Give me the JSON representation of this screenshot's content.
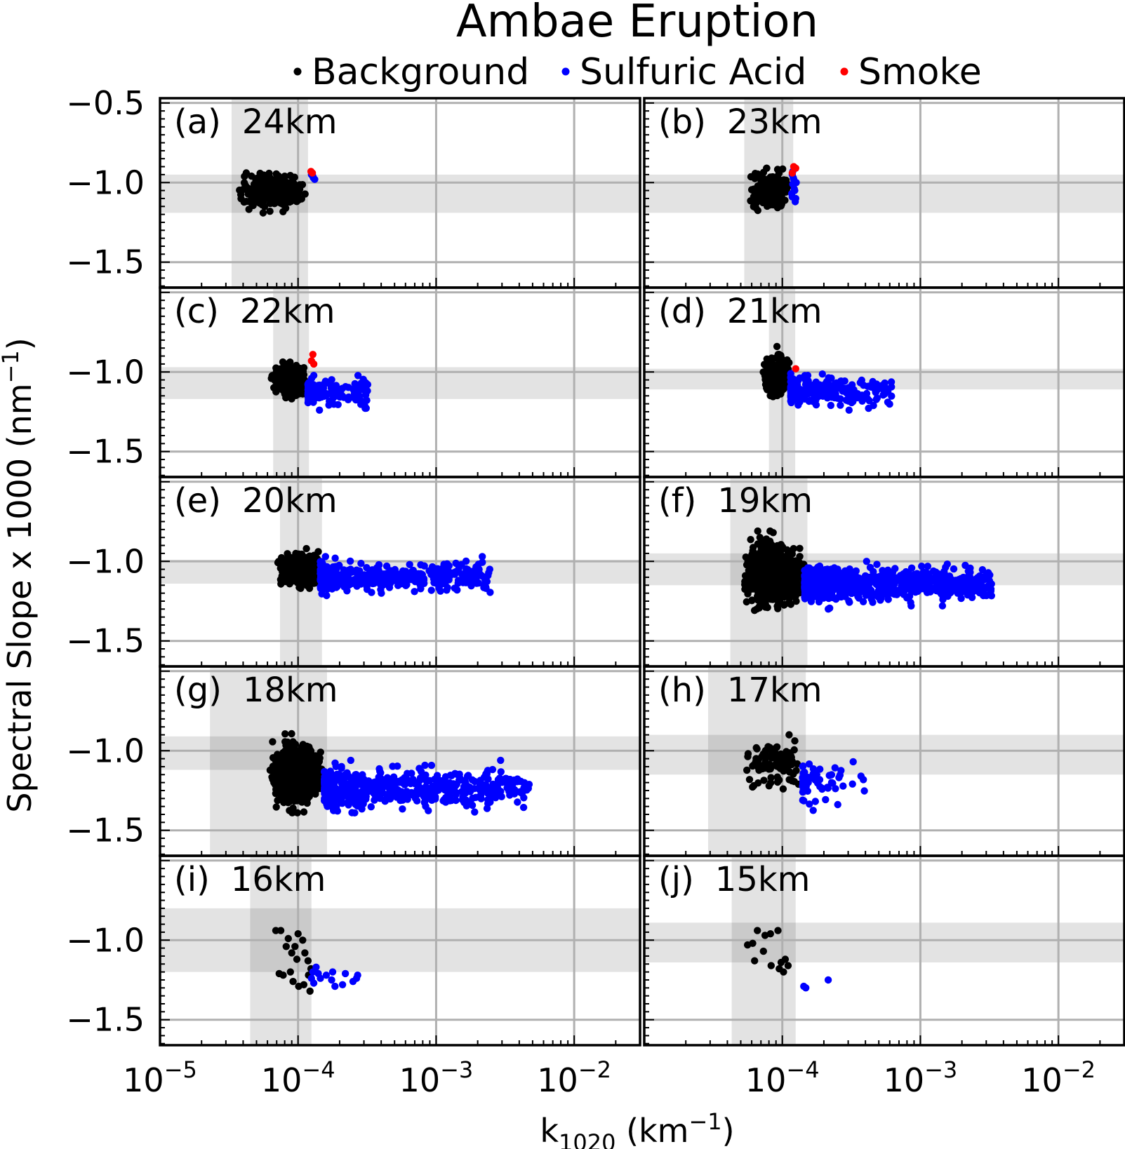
{
  "chart_data": {
    "type": "scatter",
    "title": "Ambae Eruption",
    "xlabel_main": "k",
    "xlabel_sub": "1020",
    "xlabel_unit_pre": " (km",
    "xlabel_unit_sup": "−1",
    "xlabel_unit_post": ")",
    "ylabel_main": "Spectral Slope x 1000 (nm",
    "ylabel_sup": "−1",
    "ylabel_post": ")",
    "x_scale": "log",
    "xlim": [
      1e-05,
      0.03
    ],
    "ylim": [
      -1.66,
      -0.47
    ],
    "x_ticks": [
      {
        "value": 1e-05,
        "base": "10",
        "exp": "−5"
      },
      {
        "value": 0.0001,
        "base": "10",
        "exp": "−4"
      },
      {
        "value": 0.001,
        "base": "10",
        "exp": "−3"
      },
      {
        "value": 0.01,
        "base": "10",
        "exp": "−2"
      }
    ],
    "x_tick_labels_right_panel": [
      {
        "value": 0.0001,
        "base": "10",
        "exp": "−4"
      },
      {
        "value": 0.001,
        "base": "10",
        "exp": "−3"
      },
      {
        "value": 0.01,
        "base": "10",
        "exp": "−2"
      }
    ],
    "y_ticks_top_panel": [
      {
        "value": -0.5,
        "label": "−0.5"
      },
      {
        "value": -1.0,
        "label": "−1.0"
      },
      {
        "value": -1.5,
        "label": "−1.5"
      }
    ],
    "y_ticks_other_panels": [
      {
        "value": -1.0,
        "label": "−1.0"
      },
      {
        "value": -1.5,
        "label": "−1.5"
      }
    ],
    "grid": true,
    "legend_placement": "top-center",
    "legend": [
      {
        "name": "Background",
        "color": "#000000"
      },
      {
        "name": "Sulfuric Acid",
        "color": "#0000ff"
      },
      {
        "name": "Smoke",
        "color": "#ff0000"
      }
    ],
    "panels": [
      {
        "tag": "(a)",
        "alt": "24km",
        "bg_x": [
          3.3e-05,
          0.000118
        ],
        "bg_y": [
          -1.19,
          -0.95
        ],
        "background": {
          "x": [
            3.6e-05,
            0.000115
          ],
          "xc": 6.5e-05,
          "y": [
            -1.21,
            -0.91
          ],
          "yc": -1.06,
          "n": 260
        },
        "sulfuric": [
          [
            0.000128,
            -0.96
          ],
          [
            0.000132,
            -0.98
          ],
          [
            0.000125,
            -0.95
          ],
          [
            0.000129,
            -0.97
          ]
        ],
        "smoke": [
          [
            0.000124,
            -0.93
          ],
          [
            0.000127,
            -0.94
          ]
        ]
      },
      {
        "tag": "(b)",
        "alt": "23km",
        "bg_x": [
          5.3e-05,
          0.00012
        ],
        "bg_y": [
          -1.19,
          -0.95
        ],
        "background": {
          "x": [
            5.8e-05,
            0.000112
          ],
          "xc": 8.6e-05,
          "y": [
            -1.21,
            -0.91
          ],
          "yc": -1.05,
          "n": 280
        },
        "sulfuric": [
          [
            0.000118,
            -0.95
          ],
          [
            0.000121,
            -0.98
          ],
          [
            0.000119,
            -1.01
          ],
          [
            0.000123,
            -1.05
          ],
          [
            0.000118,
            -1.09
          ],
          [
            0.000124,
            -1.12
          ],
          [
            0.00012,
            -0.97
          ],
          [
            0.000126,
            -1.0
          ],
          [
            0.000117,
            -1.07
          ],
          [
            0.000125,
            -1.1
          ],
          [
            0.000122,
            -1.04
          ],
          [
            0.000119,
            -0.93
          ]
        ],
        "smoke": [
          [
            0.000121,
            -0.9
          ],
          [
            0.000125,
            -0.91
          ],
          [
            0.000118,
            -0.94
          ]
        ]
      },
      {
        "tag": "(c)",
        "alt": "22km",
        "bg_x": [
          6.6e-05,
          0.00012
        ],
        "bg_y": [
          -1.17,
          -0.97
        ],
        "background": {
          "x": [
            6.2e-05,
            0.000115
          ],
          "xc": 9.5e-05,
          "y": [
            -1.19,
            -0.9
          ],
          "yc": -1.05,
          "n": 260
        },
        "sulfuric": {
          "x": [
            0.000118,
            0.00032
          ],
          "y": [
            -1.24,
            -0.98
          ],
          "yc": -1.13,
          "n": 130
        },
        "smoke": [
          [
            0.000128,
            -0.89
          ],
          [
            0.00013,
            -0.95
          ],
          [
            0.000125,
            -0.93
          ]
        ]
      },
      {
        "tag": "(d)",
        "alt": "21km",
        "bg_x": [
          8e-05,
          0.000124
        ],
        "bg_y": [
          -1.11,
          -0.98
        ],
        "background": {
          "x": [
            7.2e-05,
            0.000115
          ],
          "xc": 9e-05,
          "y": [
            -1.17,
            -0.84
          ],
          "yc": -1.03,
          "n": 240
        },
        "sulfuric": {
          "x": [
            0.000115,
            0.00064
          ],
          "y": [
            -1.24,
            -1.0
          ],
          "yc": -1.12,
          "n": 260
        },
        "smoke": [
          [
            0.000125,
            -0.98
          ]
        ]
      },
      {
        "tag": "(e)",
        "alt": "20km",
        "bg_x": [
          7.4e-05,
          0.000149
        ],
        "bg_y": [
          -1.14,
          -0.99
        ],
        "background": {
          "x": [
            7.1e-05,
            0.000145
          ],
          "xc": 9.8e-05,
          "y": [
            -1.17,
            -0.92
          ],
          "yc": -1.05,
          "n": 450
        },
        "sulfuric": {
          "x": [
            0.000145,
            0.0025
          ],
          "y": [
            -1.23,
            -0.97
          ],
          "yc": -1.1,
          "n": 420
        },
        "smoke": []
      },
      {
        "tag": "(f)",
        "alt": "19km",
        "bg_x": [
          4.2e-05,
          0.000152
        ],
        "bg_y": [
          -1.15,
          -0.95
        ],
        "background": {
          "x": [
            5.2e-05,
            0.000145
          ],
          "xc": 8.8e-05,
          "y": [
            -1.31,
            -0.81
          ],
          "yc": -1.08,
          "n": 850
        },
        "sulfuric": {
          "x": [
            0.000145,
            0.0033
          ],
          "y": [
            -1.3,
            -1.0
          ],
          "yc": -1.14,
          "n": 680
        },
        "smoke": []
      },
      {
        "tag": "(g)",
        "alt": "18km",
        "bg_x": [
          2.3e-05,
          0.000162
        ],
        "bg_y": [
          -1.12,
          -0.91
        ],
        "background": {
          "x": [
            6.2e-05,
            0.000155
          ],
          "xc": 9.5e-05,
          "y": [
            -1.39,
            -0.89
          ],
          "yc": -1.15,
          "n": 650
        },
        "sulfuric": {
          "x": [
            0.000155,
            0.0048
          ],
          "y": [
            -1.41,
            -1.06
          ],
          "yc": -1.24,
          "n": 560
        },
        "smoke": []
      },
      {
        "tag": "(h)",
        "alt": "17km",
        "bg_x": [
          2.9e-05,
          0.000148
        ],
        "bg_y": [
          -1.15,
          -0.9
        ],
        "background": {
          "x": [
            5.4e-05,
            0.00014
          ],
          "xc": 8.5e-05,
          "y": [
            -1.3,
            -0.88
          ],
          "yc": -1.08,
          "n": 95
        },
        "sulfuric": {
          "x": [
            0.00014,
            0.00042
          ],
          "y": [
            -1.4,
            -1.03
          ],
          "yc": -1.22,
          "n": 60
        },
        "smoke": []
      },
      {
        "tag": "(i)",
        "alt": "16km",
        "bg_x": [
          4.5e-05,
          0.000125
        ],
        "bg_y": [
          -1.2,
          -0.8
        ],
        "background": [
          [
            6.9e-05,
            -0.94
          ],
          [
            7.5e-05,
            -0.94
          ],
          [
            8.5e-05,
            -0.99
          ],
          [
            8.2e-05,
            -1.04
          ],
          [
            9e-05,
            -1.08
          ],
          [
            0.0001,
            -0.96
          ],
          [
            0.000108,
            -1.0
          ],
          [
            9.5e-05,
            -1.04
          ],
          [
            9.8e-05,
            -1.12
          ],
          [
            0.000112,
            -1.08
          ],
          [
            0.000118,
            -1.13
          ],
          [
            7.8e-05,
            -1.22
          ],
          [
            8.8e-05,
            -1.2
          ],
          [
            9.2e-05,
            -1.26
          ],
          [
            0.000101,
            -1.29
          ],
          [
            0.00011,
            -1.28
          ],
          [
            0.000122,
            -1.32
          ],
          [
            0.000124,
            -1.18
          ],
          [
            0.000119,
            -1.22
          ],
          [
            7.3e-05,
            -1.21
          ]
        ],
        "sulfuric": [
          [
            0.000128,
            -1.2
          ],
          [
            0.000135,
            -1.17
          ],
          [
            0.000145,
            -1.24
          ],
          [
            0.00013,
            -1.27
          ],
          [
            0.00016,
            -1.22
          ],
          [
            0.000175,
            -1.25
          ],
          [
            0.000185,
            -1.29
          ],
          [
            0.00021,
            -1.28
          ],
          [
            0.00022,
            -1.21
          ],
          [
            0.00025,
            -1.26
          ],
          [
            0.00027,
            -1.22
          ],
          [
            0.000265,
            -1.24
          ],
          [
            0.00014,
            -1.21
          ],
          [
            0.000178,
            -1.2
          ],
          [
            0.000125,
            -1.24
          ]
        ],
        "smoke": []
      },
      {
        "tag": "(j)",
        "alt": "15km",
        "bg_x": [
          4.3e-05,
          0.000125
        ],
        "bg_y": [
          -1.14,
          -0.89
        ],
        "background": [
          [
            6.6e-05,
            -0.94
          ],
          [
            7.5e-05,
            -0.97
          ],
          [
            8.2e-05,
            -0.96
          ],
          [
            9.3e-05,
            -0.94
          ],
          [
            6.1e-05,
            -1.02
          ],
          [
            5.6e-05,
            -1.03
          ],
          [
            7.3e-05,
            -1.07
          ],
          [
            6.3e-05,
            -1.13
          ],
          [
            8.3e-05,
            -1.16
          ],
          [
            9.8e-05,
            -1.14
          ],
          [
            0.000105,
            -1.12
          ],
          [
            0.00011,
            -1.16
          ],
          [
            0.000102,
            -1.2
          ],
          [
            9.5e-05,
            -1.18
          ]
        ],
        "sulfuric": [
          [
            0.000143,
            -1.29
          ],
          [
            0.000148,
            -1.3
          ],
          [
            0.000215,
            -1.25
          ]
        ],
        "smoke": []
      }
    ]
  }
}
